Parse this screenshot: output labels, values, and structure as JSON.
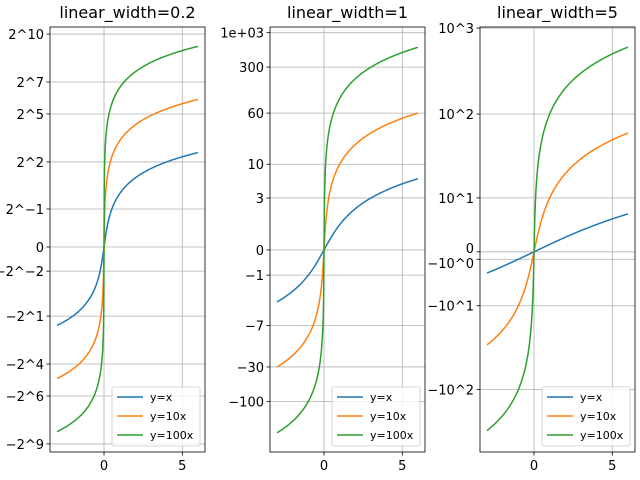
{
  "chart_data": [
    {
      "type": "line",
      "title": "linear_width=0.2",
      "yscale": "asinh",
      "linear_width": 0.2,
      "xlim": [
        -3.45,
        6.45
      ],
      "ylim_asinh": [
        -1.778,
        1.908
      ],
      "x_range": [
        -3,
        6
      ],
      "xticks": [
        {
          "v": 0,
          "label": "0"
        },
        {
          "v": 5,
          "label": "5"
        }
      ],
      "yticks": [
        {
          "v": 1024,
          "label": "2^10"
        },
        {
          "v": 128,
          "label": "2^7"
        },
        {
          "v": 32,
          "label": "2^5"
        },
        {
          "v": 4,
          "label": "2^2"
        },
        {
          "v": 0.5,
          "label": "2^−1"
        },
        {
          "v": 0,
          "label": "0"
        },
        {
          "v": -0.25,
          "label": "−2^−2"
        },
        {
          "v": -2,
          "label": "−2^1"
        },
        {
          "v": -16,
          "label": "−2^4"
        },
        {
          "v": -64,
          "label": "−2^6"
        },
        {
          "v": -512,
          "label": "−2^9"
        }
      ],
      "series": [
        {
          "name": "y=x",
          "slope": 1,
          "color": "#1f77b4"
        },
        {
          "name": "y=10x",
          "slope": 10,
          "color": "#ff7f0e"
        },
        {
          "name": "y=100x",
          "slope": 100,
          "color": "#2ca02c"
        }
      ],
      "grid": true,
      "legend": "lower right"
    },
    {
      "type": "line",
      "title": "linear_width=1",
      "yscale": "asinh",
      "linear_width": 1,
      "xlim": [
        -3.45,
        6.45
      ],
      "ylim_asinh": [
        -7.07,
        7.8
      ],
      "x_range": [
        -3,
        6
      ],
      "xticks": [
        {
          "v": 0,
          "label": "0"
        },
        {
          "v": 5,
          "label": "5"
        }
      ],
      "yticks": [
        {
          "v": 1000,
          "label": "1e+03"
        },
        {
          "v": 300,
          "label": "300"
        },
        {
          "v": 60,
          "label": "60"
        },
        {
          "v": 10,
          "label": "10"
        },
        {
          "v": 3,
          "label": "3"
        },
        {
          "v": 0,
          "label": "0"
        },
        {
          "v": -1,
          "label": "−1"
        },
        {
          "v": -7,
          "label": "−7"
        },
        {
          "v": -30,
          "label": "−30"
        },
        {
          "v": -100,
          "label": "−100"
        }
      ],
      "series": [
        {
          "name": "y=x",
          "slope": 1,
          "color": "#1f77b4"
        },
        {
          "name": "y=10x",
          "slope": 10,
          "color": "#ff7f0e"
        },
        {
          "name": "y=100x",
          "slope": 100,
          "color": "#2ca02c"
        }
      ],
      "grid": true,
      "legend": "lower right"
    },
    {
      "type": "line",
      "title": "linear_width=5",
      "yscale": "asinh",
      "linear_width": 5,
      "xlim": [
        -3.45,
        6.45
      ],
      "ylim_asinh": [
        -26.8,
        30.1
      ],
      "x_range": [
        -3,
        6
      ],
      "xticks": [
        {
          "v": 0,
          "label": "0"
        },
        {
          "v": 5,
          "label": "5"
        }
      ],
      "yticks": [
        {
          "v": 1000,
          "label": "10^3"
        },
        {
          "v": 100,
          "label": "10^2"
        },
        {
          "v": 10,
          "label": "10^1"
        },
        {
          "v": 0,
          "label": "0"
        },
        {
          "v": -1,
          "label": "−10^0"
        },
        {
          "v": -10,
          "label": "−10^1"
        },
        {
          "v": -100,
          "label": "−10^2"
        }
      ],
      "series": [
        {
          "name": "y=x",
          "slope": 1,
          "color": "#1f77b4"
        },
        {
          "name": "y=10x",
          "slope": 10,
          "color": "#ff7f0e"
        },
        {
          "name": "y=100x",
          "slope": 100,
          "color": "#2ca02c"
        }
      ],
      "grid": true,
      "legend": "lower right"
    }
  ]
}
